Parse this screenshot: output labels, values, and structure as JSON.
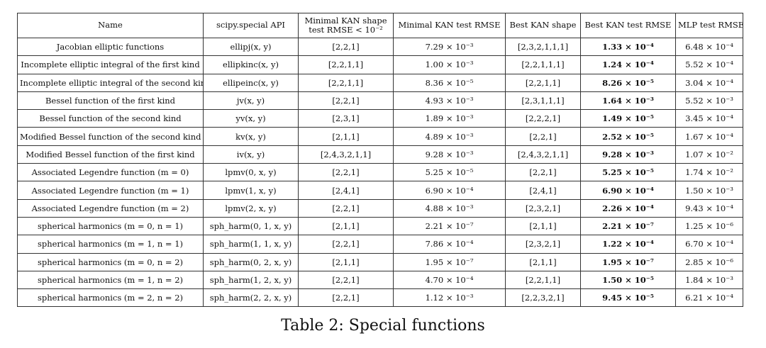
{
  "table": {
    "headers": [
      "Name",
      "scipy.special API",
      "Minimal KAN shape\ntest RMSE < 10⁻²",
      "Minimal KAN test RMSE",
      "Best KAN shape",
      "Best KAN test RMSE",
      "MLP test RMSE"
    ],
    "rows": [
      [
        "Jacobian elliptic functions",
        "ellipj(x, y)",
        "[2,2,1]",
        "7.29 × 10⁻³",
        "[2,3,2,1,1,1]",
        "1.33 × 10⁻⁴",
        "6.48 × 10⁻⁴"
      ],
      [
        "Incomplete elliptic integral of the first kind",
        "ellipkinc(x, y)",
        "[2,2,1,1]",
        "1.00 × 10⁻³",
        "[2,2,1,1,1]",
        "1.24 × 10⁻⁴",
        "5.52 × 10⁻⁴"
      ],
      [
        "Incomplete elliptic integral of the second kind",
        "ellipeinc(x, y)",
        "[2,2,1,1]",
        "8.36 × 10⁻⁵",
        "[2,2,1,1]",
        "8.26 × 10⁻⁵",
        "3.04 × 10⁻⁴"
      ],
      [
        "Bessel function of the first kind",
        "jv(x, y)",
        "[2,2,1]",
        "4.93 × 10⁻³",
        "[2,3,1,1,1]",
        "1.64 × 10⁻³",
        "5.52 × 10⁻³"
      ],
      [
        "Bessel function of the second kind",
        "yv(x, y)",
        "[2,3,1]",
        "1.89 × 10⁻³",
        "[2,2,2,1]",
        "1.49 × 10⁻⁵",
        "3.45 × 10⁻⁴"
      ],
      [
        "Modified Bessel function of the second kind",
        "kv(x, y)",
        "[2,1,1]",
        "4.89 × 10⁻³",
        "[2,2,1]",
        "2.52 × 10⁻⁵",
        "1.67 × 10⁻⁴"
      ],
      [
        "Modified Bessel function of the first kind",
        "iv(x, y)",
        "[2,4,3,2,1,1]",
        "9.28 × 10⁻³",
        "[2,4,3,2,1,1]",
        "9.28 × 10⁻³",
        "1.07 × 10⁻²"
      ],
      [
        "Associated Legendre function (m = 0)",
        "lpmv(0, x, y)",
        "[2,2,1]",
        "5.25 × 10⁻⁵",
        "[2,2,1]",
        "5.25 × 10⁻⁵",
        "1.74 × 10⁻²"
      ],
      [
        "Associated Legendre function (m = 1)",
        "lpmv(1, x, y)",
        "[2,4,1]",
        "6.90 × 10⁻⁴",
        "[2,4,1]",
        "6.90 × 10⁻⁴",
        "1.50 × 10⁻³"
      ],
      [
        "Associated Legendre function (m = 2)",
        "lpmv(2, x, y)",
        "[2,2,1]",
        "4.88 × 10⁻³",
        "[2,3,2,1]",
        "2.26 × 10⁻⁴",
        "9.43 × 10⁻⁴"
      ],
      [
        "spherical harmonics (m = 0, n = 1)",
        "sph_harm(0, 1, x, y)",
        "[2,1,1]",
        "2.21 × 10⁻⁷",
        "[2,1,1]",
        "2.21 × 10⁻⁷",
        "1.25 × 10⁻⁶"
      ],
      [
        "spherical harmonics (m = 1, n = 1)",
        "sph_harm(1, 1, x, y)",
        "[2,2,1]",
        "7.86 × 10⁻⁴",
        "[2,3,2,1]",
        "1.22 × 10⁻⁴",
        "6.70 × 10⁻⁴"
      ],
      [
        "spherical harmonics (m = 0, n = 2)",
        "sph_harm(0, 2, x, y)",
        "[2,1,1]",
        "1.95 × 10⁻⁷",
        "[2,1,1]",
        "1.95 × 10⁻⁷",
        "2.85 × 10⁻⁶"
      ],
      [
        "spherical harmonics (m = 1, n = 2)",
        "sph_harm(1, 2, x, y)",
        "[2,2,1]",
        "4.70 × 10⁻⁴",
        "[2,2,1,1]",
        "1.50 × 10⁻⁵",
        "1.84 × 10⁻³"
      ],
      [
        "spherical harmonics (m = 2, n = 2)",
        "sph_harm(2, 2, x, y)",
        "[2,2,1]",
        "1.12 × 10⁻³",
        "[2,2,3,2,1]",
        "9.45 × 10⁻⁵",
        "6.21 × 10⁻⁴"
      ]
    ]
  },
  "caption": "Table 2: Special functions"
}
